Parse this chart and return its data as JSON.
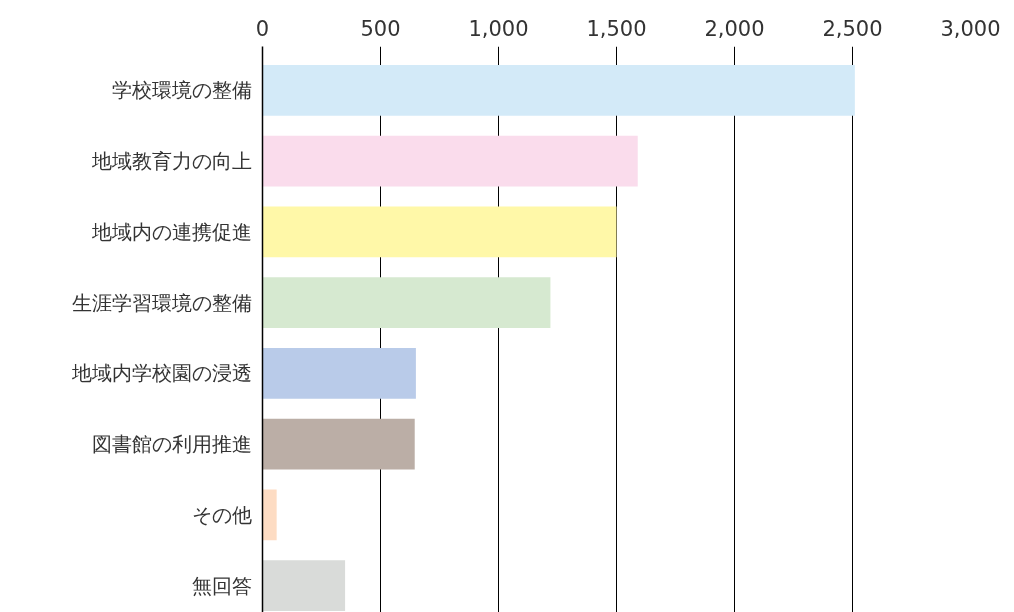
{
  "chart_data": {
    "type": "bar",
    "orientation": "horizontal",
    "categories": [
      "学校環境の整備",
      "地域教育力の向上",
      "地域内の連携促進",
      "生涯学習環境の整備",
      "地域内学校園の浸透",
      "図書館の利用推進",
      "その他",
      "無回答"
    ],
    "values": [
      2510,
      1590,
      1500,
      1220,
      650,
      645,
      60,
      350
    ],
    "colors": [
      "#d3eaf8",
      "#fadcec",
      "#fff8a8",
      "#d6e9d0",
      "#b9cbe9",
      "#bbaea6",
      "#fddcc3",
      "#d9dbd9"
    ],
    "xlim": [
      0,
      3000
    ],
    "xticks": [
      0,
      {
        "value": 500,
        "label": "500"
      },
      {
        "value": 1000,
        "label": "1,000"
      },
      {
        "value": 1500,
        "label": "1,500"
      },
      {
        "value": 2000,
        "label": "2,000"
      },
      {
        "value": 2500,
        "label": "2,500"
      },
      {
        "value": 3000,
        "label": "3,000"
      }
    ],
    "grid": "x"
  }
}
